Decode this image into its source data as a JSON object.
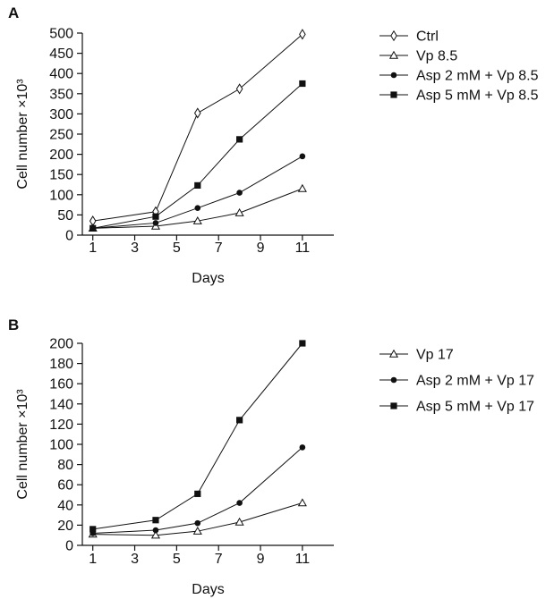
{
  "chart_data": [
    {
      "panel": "A",
      "type": "line",
      "xlabel": "Days",
      "ylabel": "Cell number ×10³",
      "xlim": [
        0.5,
        12.5
      ],
      "ylim": [
        0,
        500
      ],
      "xticks": [
        1,
        3,
        5,
        7,
        9,
        11
      ],
      "yticks": [
        0,
        50,
        100,
        150,
        200,
        250,
        300,
        350,
        400,
        450,
        500
      ],
      "x": [
        1,
        4,
        6,
        8,
        11
      ],
      "series": [
        {
          "name": "Ctrl",
          "marker": "diamond-open",
          "values": [
            35,
            58,
            302,
            362,
            497
          ]
        },
        {
          "name": "Vp 8.5",
          "marker": "triangle-open",
          "values": [
            17,
            22,
            35,
            55,
            115
          ]
        },
        {
          "name": "Asp 2 mM + Vp 8.5",
          "marker": "circle-filled",
          "values": [
            17,
            30,
            67,
            105,
            195
          ]
        },
        {
          "name": "Asp 5 mM + Vp 8.5",
          "marker": "square-filled",
          "values": [
            17,
            46,
            123,
            237,
            375
          ]
        }
      ],
      "grid": false,
      "legend_position": "right"
    },
    {
      "panel": "B",
      "type": "line",
      "xlabel": "Days",
      "ylabel": "Cell number ×10³",
      "xlim": [
        0.5,
        12.5
      ],
      "ylim": [
        0,
        200
      ],
      "xticks": [
        1,
        3,
        5,
        7,
        9,
        11
      ],
      "yticks": [
        0,
        20,
        40,
        60,
        80,
        100,
        120,
        140,
        160,
        180,
        200
      ],
      "x": [
        1,
        4,
        6,
        8,
        11
      ],
      "series": [
        {
          "name": "Vp 17",
          "marker": "triangle-open",
          "values": [
            11,
            10,
            14,
            23,
            42
          ]
        },
        {
          "name": "Asp 2 mM + Vp 17",
          "marker": "circle-filled",
          "values": [
            12,
            15,
            22,
            42,
            97
          ]
        },
        {
          "name": "Asp 5 mM + Vp 17",
          "marker": "square-filled",
          "values": [
            16,
            25,
            51,
            124,
            200
          ]
        }
      ],
      "grid": false,
      "legend_position": "right"
    }
  ]
}
